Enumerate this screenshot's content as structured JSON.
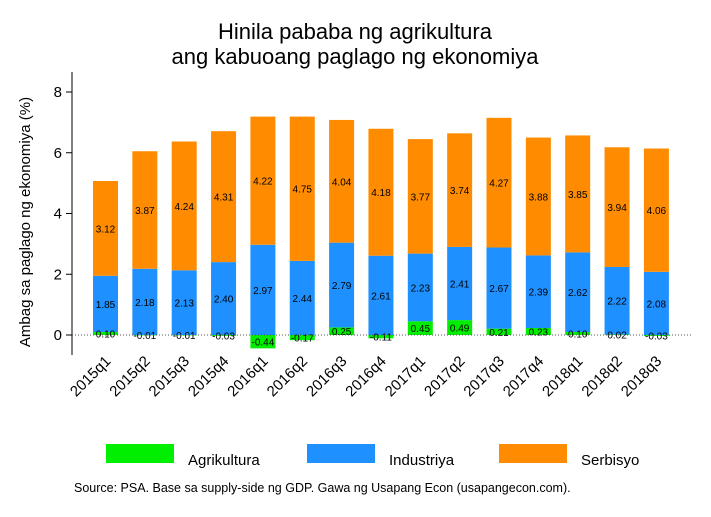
{
  "chart_data": {
    "type": "bar",
    "stacked": true,
    "title": [
      "Hinila pababa ng agrikultura",
      "ang kabuoang paglago ng ekonomiya"
    ],
    "ylabel": "Ambag sa paglago ng ekonomiya (%)",
    "xlabel": "",
    "ylim": [
      -0.6,
      8.5
    ],
    "yticks": [
      0,
      2,
      4,
      6,
      8
    ],
    "categories": [
      "2015q1",
      "2015q2",
      "2015q3",
      "2015q4",
      "2016q1",
      "2016q2",
      "2016q3",
      "2016q4",
      "2017q1",
      "2017q2",
      "2017q3",
      "2017q4",
      "2018q1",
      "2018q2",
      "2018q3"
    ],
    "series": [
      {
        "name": "Agrikultura",
        "color": "#00ee00",
        "values": [
          0.1,
          -0.01,
          -0.01,
          -0.03,
          -0.44,
          -0.17,
          0.25,
          -0.11,
          0.45,
          0.49,
          0.21,
          0.23,
          0.1,
          0.02,
          -0.03
        ],
        "labels": [
          "0.10",
          "-0.01",
          "-0.01",
          "-0.03",
          "-0.44",
          "-0.17",
          "0.25",
          "-0.11",
          "0.45",
          "0.49",
          "0.21",
          "0.23",
          "0.10",
          "0.02",
          "-0.03"
        ]
      },
      {
        "name": "Industriya",
        "color": "#1e90ff",
        "values": [
          1.85,
          2.18,
          2.13,
          2.4,
          2.97,
          2.44,
          2.79,
          2.61,
          2.23,
          2.41,
          2.67,
          2.39,
          2.62,
          2.22,
          2.08
        ],
        "labels": [
          "1.85",
          "2.18",
          "2.13",
          "2.40",
          "2.97",
          "2.44",
          "2.79",
          "2.61",
          "2.23",
          "2.41",
          "2.67",
          "2.39",
          "2.62",
          "2.22",
          "2.08"
        ]
      },
      {
        "name": "Serbisyo",
        "color": "#ff8c00",
        "values": [
          3.12,
          3.87,
          4.24,
          4.31,
          4.22,
          4.75,
          4.04,
          4.18,
          3.77,
          3.74,
          4.27,
          3.88,
          3.85,
          3.94,
          4.06
        ],
        "labels": [
          "3.12",
          "3.87",
          "4.24",
          "4.31",
          "4.22",
          "4.75",
          "4.04",
          "4.18",
          "3.77",
          "3.74",
          "4.27",
          "3.88",
          "3.85",
          "3.94",
          "4.06"
        ]
      }
    ],
    "legend_position": "bottom",
    "zero_line": "dotted",
    "source": "Source: PSA. Base sa supply-side ng GDP. Gawa ng Usapang Econ (usapangecon.com)."
  }
}
